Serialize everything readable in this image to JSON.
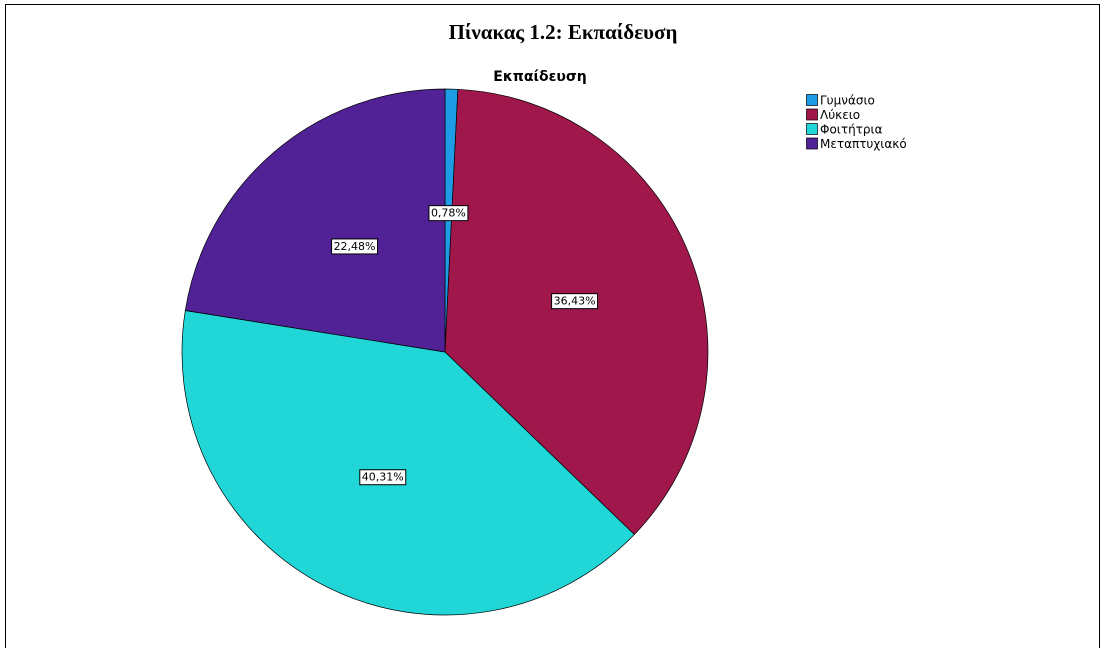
{
  "heading": "Πίνακας 1.2: Εκπαίδευση",
  "chart_data": {
    "type": "pie",
    "title": "Εκπαίδευση",
    "categories": [
      "Γυμνάσιο",
      "Λύκειο",
      "Φοιτήτρια",
      "Μεταπτυχιακό"
    ],
    "values": [
      0.78,
      36.43,
      40.31,
      22.48
    ],
    "value_labels": [
      "0,78%",
      "36,43%",
      "40,31%",
      "22,48%"
    ],
    "colors": [
      "#1e9de6",
      "#a0184b",
      "#21d6d6",
      "#502295"
    ],
    "legend": "right"
  }
}
